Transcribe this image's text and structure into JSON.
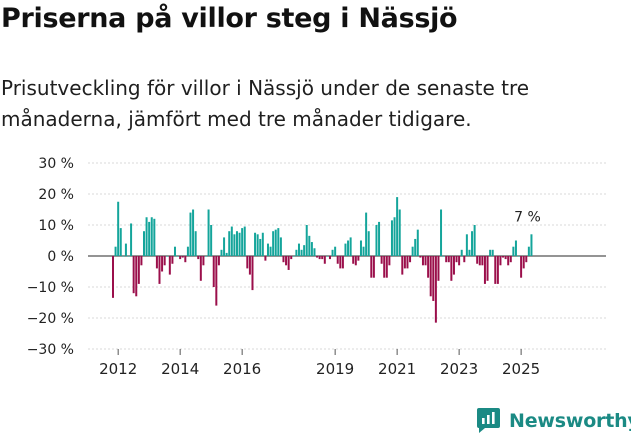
{
  "header": {
    "title": "Priserna på villor steg i Nässjö",
    "subtitle": "Prisutveckling för villor i Nässjö under de senaste tre månaderna, jämfört med tre månader tidigare."
  },
  "brand": {
    "name": "Newsworthy",
    "icon": "newsworthy-logo-icon"
  },
  "colors": {
    "positive": "#14a59b",
    "negative": "#9b0f4b",
    "grid": "#d9d9d9",
    "axis": "#555555",
    "brand": "#1b8a84"
  },
  "chart_data": {
    "type": "bar",
    "title": "Priserna på villor steg i Nässjö",
    "xlabel": "",
    "ylabel": "",
    "ylim": [
      -30,
      30
    ],
    "yticks": [
      30,
      20,
      10,
      0,
      -10,
      -20,
      -30
    ],
    "ytick_labels": [
      "30 %",
      "20 %",
      "10 %",
      "0 %",
      "−10 %",
      "−20 %",
      "−30 %"
    ],
    "xticks": [
      "2012",
      "2014",
      "2016",
      "2019",
      "2021",
      "2023",
      "2025"
    ],
    "x_start": "2011-11",
    "last_label": "7 %",
    "values": [
      -13.5,
      3,
      17.5,
      9,
      0,
      4,
      0,
      10.5,
      -12,
      -13,
      -9,
      -3,
      8,
      12.5,
      11,
      12.5,
      12,
      -4,
      -9,
      -5,
      -3,
      0,
      -6,
      -2.5,
      3,
      0,
      -1,
      -0.5,
      -2,
      3,
      14,
      15,
      8,
      -1,
      -8,
      -3,
      0,
      15,
      10,
      -10,
      -16,
      -3,
      2,
      6,
      1,
      8,
      9.5,
      7,
      8,
      7.5,
      9,
      9.5,
      -4,
      -6,
      -11,
      7.5,
      7,
      5.5,
      7.5,
      -1.5,
      4,
      3,
      8,
      8.5,
      9,
      6,
      -2,
      -3,
      -4.5,
      -1,
      0,
      2,
      4,
      2,
      3.5,
      10,
      6.5,
      4.5,
      2.5,
      -0.5,
      -1,
      -1,
      -2.5,
      0,
      -1,
      2,
      3,
      -2.5,
      -4,
      -4,
      4,
      5,
      6,
      -2.5,
      -3,
      -1.5,
      5,
      3,
      14,
      8,
      -7,
      -7,
      10,
      11,
      -2.5,
      -7,
      -7,
      -3,
      11.5,
      12.5,
      19,
      15,
      -6,
      -4,
      -4,
      -2,
      3,
      5.5,
      8.5,
      -0.5,
      -3,
      -3,
      -7,
      -13,
      -14.5,
      -21.5,
      -8,
      15,
      0,
      -2,
      -2,
      -8,
      -6,
      -2,
      -3,
      2,
      -2,
      7,
      2,
      8,
      10,
      -2.5,
      -3,
      -3,
      -9,
      -8,
      2,
      2,
      -9,
      -9,
      -3,
      -0.5,
      -1,
      -3,
      -2,
      3,
      5,
      0,
      -7,
      -4,
      -2,
      3,
      7
    ]
  }
}
